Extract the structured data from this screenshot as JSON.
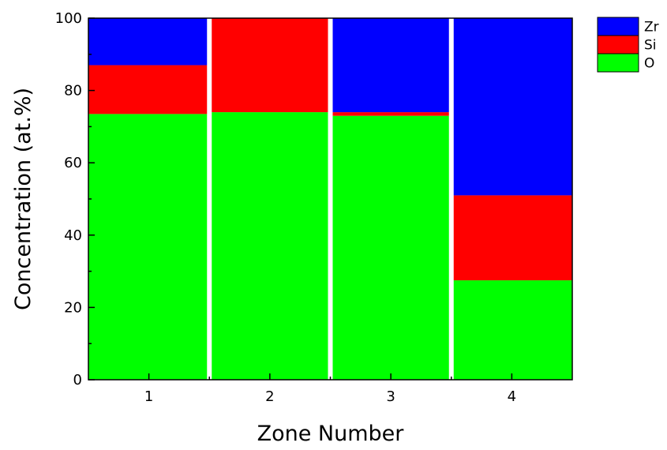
{
  "chart_data": {
    "type": "bar",
    "stacked": true,
    "categories": [
      "1",
      "2",
      "3",
      "4"
    ],
    "series": [
      {
        "name": "O",
        "color": "#00ff00",
        "values": [
          73.5,
          74.0,
          73.0,
          27.5
        ]
      },
      {
        "name": "Si",
        "color": "#ff0000",
        "values": [
          13.5,
          26.0,
          1.0,
          23.5
        ]
      },
      {
        "name": "Zr",
        "color": "#0000ff",
        "values": [
          13.0,
          0.0,
          26.0,
          49.0
        ]
      }
    ],
    "xlabel": "Zone Number",
    "ylabel": "Concentration (at.%)",
    "ylim": [
      0,
      100
    ],
    "yticks": [
      0,
      20,
      40,
      60,
      80,
      100
    ],
    "legend_order": [
      "Zr",
      "Si",
      "O"
    ],
    "legend_position": "top-right outside",
    "grid": false
  }
}
